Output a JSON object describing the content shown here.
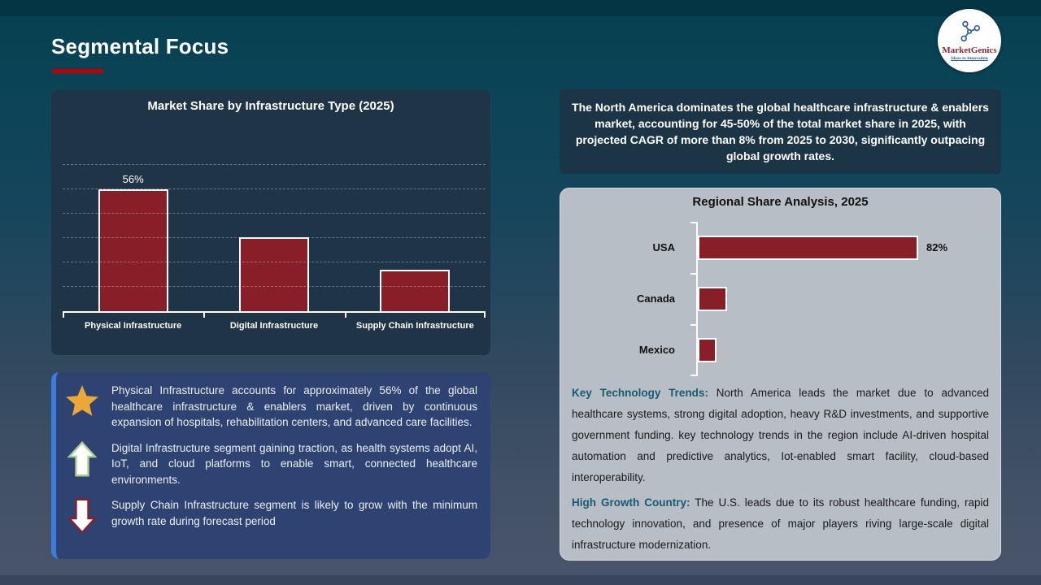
{
  "slide": {
    "title": "Segmental Focus",
    "logo": {
      "brand": "MarketGenics",
      "tagline": "Ideas to Innovation"
    }
  },
  "headline": "The North America dominates the global healthcare infrastructure & enablers market, accounting for 45-50% of the total market share in 2025, with projected CAGR of more than 8% from 2025 to 2030, significantly outpacing global growth rates.",
  "chart_data": [
    {
      "type": "bar",
      "title": "Market Share by Infrastructure Type (2025)",
      "categories": [
        "Physical Infrastructure",
        "Digital Infrastructure",
        "Supply Chain Infrastructure"
      ],
      "values": [
        56,
        34,
        19
      ],
      "unit": "%",
      "data_labels": [
        "56%",
        "",
        ""
      ],
      "ylim": [
        0,
        65
      ],
      "grid": "horizontal-dashed",
      "legend": "none",
      "bar_color": "#871e28",
      "bar_border": "#ffffff"
    },
    {
      "type": "bar-horizontal",
      "title": "Regional Share Analysis, 2025",
      "categories": [
        "USA",
        "Canada",
        "Mexico"
      ],
      "values": [
        82,
        11,
        7
      ],
      "unit": "%",
      "data_labels": [
        "82%",
        "",
        ""
      ],
      "xlim": [
        0,
        100
      ],
      "grid": "off",
      "legend": "none",
      "bar_color": "#871e28",
      "bar_border": "#ffffff"
    }
  ],
  "insights": [
    {
      "icon": "star-icon",
      "text": "Physical Infrastructure accounts for approximately 56% of the global healthcare infrastructure & enablers market, driven by continuous expansion of hospitals, rehabilitation centers, and advanced care facilities."
    },
    {
      "icon": "up-arrow-icon",
      "text": "Digital Infrastructure segment gaining traction, as health systems adopt AI, IoT, and cloud platforms to enable smart, connected healthcare environments."
    },
    {
      "icon": "down-arrow-icon",
      "text": "Supply Chain Infrastructure segment is likely to grow with the minimum growth rate during forecast period"
    }
  ],
  "trends": [
    {
      "lead": "Key Technology Trends:",
      "text": " North America leads the market due to advanced healthcare systems, strong digital adoption, heavy R&D investments, and supportive government funding. key technology trends in the region include AI-driven hospital automation and predictive analytics, Iot-enabled smart facility, cloud-based interoperability."
    },
    {
      "lead": "High Growth Country:",
      "text": " The U.S. leads due to its robust healthcare funding, rapid technology innovation, and presence of major players riving large-scale digital infrastructure modernization."
    }
  ],
  "colors": {
    "accent_red": "#c00000",
    "bar_red": "#871e28",
    "navy_box": "#2f4372",
    "navy_stripe": "#3c7cdc",
    "teal_heading": "#175a70",
    "gray_card": "#b8bec6",
    "dark_panel": "#1f3447",
    "gold_star": "#eba838",
    "background_top": "#05404f",
    "background_bottom": "#485469"
  }
}
